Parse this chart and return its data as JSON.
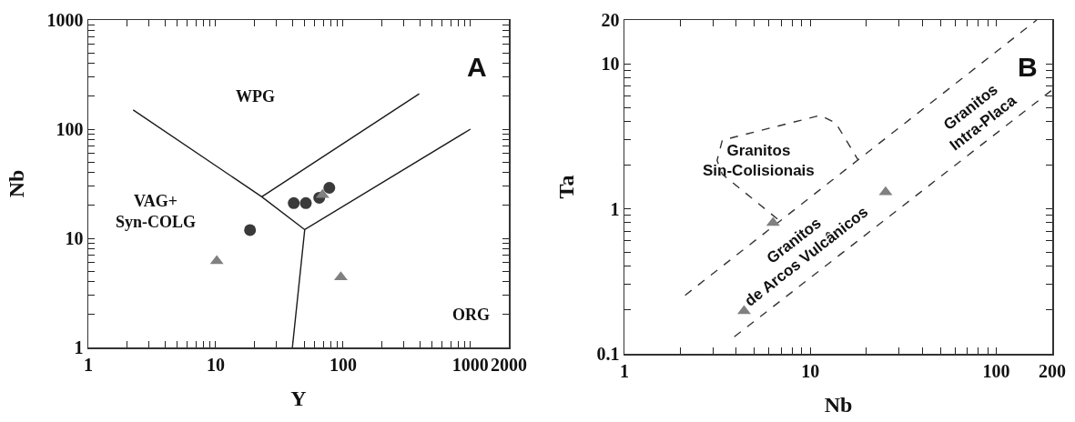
{
  "chart_data": [
    {
      "type": "scatter",
      "xlabel": "Y",
      "ylabel": "Nb",
      "log": "xy",
      "grid": false,
      "xlim": [
        1,
        2000
      ],
      "ylim": [
        1,
        1000
      ],
      "xticks": [
        1,
        {
          "value": 2,
          "label": null
        },
        {
          "value": 3,
          "label": null
        },
        {
          "value": 4,
          "label": null
        },
        {
          "value": 5,
          "label": null
        },
        {
          "value": 6,
          "label": null
        },
        {
          "value": 7,
          "label": null
        },
        {
          "value": 8,
          "label": null
        },
        {
          "value": 9,
          "label": null
        },
        10,
        {
          "value": 20,
          "label": null
        },
        {
          "value": 30,
          "label": null
        },
        {
          "value": 40,
          "label": null
        },
        {
          "value": 50,
          "label": null
        },
        {
          "value": 60,
          "label": null
        },
        {
          "value": 70,
          "label": null
        },
        {
          "value": 80,
          "label": null
        },
        {
          "value": 90,
          "label": null
        },
        100,
        {
          "value": 200,
          "label": null
        },
        {
          "value": 300,
          "label": null
        },
        {
          "value": 400,
          "label": null
        },
        {
          "value": 500,
          "label": null
        },
        {
          "value": 600,
          "label": null
        },
        {
          "value": 700,
          "label": null
        },
        {
          "value": 800,
          "label": null
        },
        {
          "value": 900,
          "label": null
        },
        1000,
        2000
      ],
      "yticks": [
        1,
        {
          "value": 2,
          "label": null
        },
        {
          "value": 3,
          "label": null
        },
        {
          "value": 4,
          "label": null
        },
        {
          "value": 5,
          "label": null
        },
        {
          "value": 6,
          "label": null
        },
        {
          "value": 7,
          "label": null
        },
        {
          "value": 8,
          "label": null
        },
        {
          "value": 9,
          "label": null
        },
        10,
        {
          "value": 20,
          "label": null
        },
        {
          "value": 30,
          "label": null
        },
        {
          "value": 40,
          "label": null
        },
        {
          "value": 50,
          "label": null
        },
        {
          "value": 60,
          "label": null
        },
        {
          "value": 70,
          "label": null
        },
        {
          "value": 80,
          "label": null
        },
        {
          "value": 90,
          "label": null
        },
        100,
        {
          "value": 200,
          "label": null
        },
        {
          "value": 300,
          "label": null
        },
        {
          "value": 400,
          "label": null
        },
        {
          "value": 500,
          "label": null
        },
        {
          "value": 600,
          "label": null
        },
        {
          "value": 700,
          "label": null
        },
        {
          "value": 800,
          "label": null
        },
        {
          "value": 900,
          "label": null
        },
        1000
      ],
      "series": [
        {
          "type": "line",
          "color": "#1a1a1a",
          "line_style": "solid",
          "marker": "none",
          "x": [
            2.25,
            23,
            50
          ],
          "values": [
            150,
            24,
            12
          ]
        },
        {
          "type": "line",
          "color": "#1a1a1a",
          "line_style": "solid",
          "marker": "none",
          "x": [
            40,
            50,
            1000
          ],
          "values": [
            1,
            12,
            100
          ]
        },
        {
          "type": "line",
          "color": "#1a1a1a",
          "line_style": "solid",
          "marker": "none",
          "x": [
            23,
            396
          ],
          "values": [
            24,
            211
          ]
        },
        {
          "color": "#3a3a3a",
          "marker": "circle",
          "x": [
            18.6,
            41,
            51,
            65,
            78
          ],
          "values": [
            11.9,
            21,
            21,
            23.5,
            29
          ]
        },
        {
          "color": "#808080",
          "marker": "triangle",
          "x": [
            10.2,
            96,
            69
          ],
          "values": [
            6.2,
            4.4,
            25
          ]
        }
      ],
      "annotations": [
        "A",
        "WPG",
        "VAG+\nSyn-COLG",
        "ORG"
      ]
    },
    {
      "type": "scatter",
      "xlabel": "Nb",
      "ylabel": "Ta",
      "log": "xy",
      "grid": false,
      "xlim": [
        1,
        200
      ],
      "ylim": [
        0.1,
        20
      ],
      "xticks": [
        1,
        {
          "value": 2,
          "label": null
        },
        {
          "value": 3,
          "label": null
        },
        {
          "value": 4,
          "label": null
        },
        {
          "value": 5,
          "label": null
        },
        {
          "value": 6,
          "label": null
        },
        {
          "value": 7,
          "label": null
        },
        {
          "value": 8,
          "label": null
        },
        {
          "value": 9,
          "label": null
        },
        10,
        {
          "value": 20,
          "label": null
        },
        {
          "value": 30,
          "label": null
        },
        {
          "value": 40,
          "label": null
        },
        {
          "value": 50,
          "label": null
        },
        {
          "value": 60,
          "label": null
        },
        {
          "value": 70,
          "label": null
        },
        {
          "value": 80,
          "label": null
        },
        {
          "value": 90,
          "label": null
        },
        100,
        200
      ],
      "yticks": [
        0.1,
        {
          "value": 0.2,
          "label": null
        },
        {
          "value": 0.3,
          "label": null
        },
        {
          "value": 0.4,
          "label": null
        },
        {
          "value": 0.5,
          "label": null
        },
        {
          "value": 0.6,
          "label": null
        },
        {
          "value": 0.7,
          "label": null
        },
        {
          "value": 0.8,
          "label": null
        },
        {
          "value": 0.9,
          "label": null
        },
        1,
        {
          "value": 2,
          "label": null
        },
        {
          "value": 3,
          "label": null
        },
        {
          "value": 4,
          "label": null
        },
        {
          "value": 5,
          "label": null
        },
        {
          "value": 6,
          "label": null
        },
        {
          "value": 7,
          "label": null
        },
        {
          "value": 8,
          "label": null
        },
        {
          "value": 9,
          "label": null
        },
        10,
        20
      ],
      "series": [
        {
          "type": "line",
          "color": "#333333",
          "line_style": "dashed",
          "marker": "none",
          "x": [
            2.12,
            165
          ],
          "values": [
            0.253,
            20
          ]
        },
        {
          "type": "line",
          "color": "#333333",
          "line_style": "dashed",
          "marker": "none",
          "x": [
            3.9,
            200
          ],
          "values": [
            0.131,
            6.6
          ]
        },
        {
          "type": "line",
          "color": "#333333",
          "line_style": "dashed",
          "marker": "none",
          "x": [
            6.65,
            3.36,
            3.15,
            3.36,
            11.3,
            13.7,
            18.1
          ],
          "values": [
            0.85,
            1.73,
            2.15,
            2.97,
            4.4,
            3.9,
            2.16
          ]
        },
        {
          "color": "#808080",
          "marker": "triangle",
          "x": [
            6.3,
            25.4,
            4.4
          ],
          "values": [
            0.8,
            1.3,
            0.197
          ]
        }
      ],
      "annotations": [
        "B",
        "Granitos\nSin-Colisionais",
        "Granitos\nde Arcos Vulcânicos",
        "Granitos\nIntra-Placa"
      ]
    }
  ]
}
